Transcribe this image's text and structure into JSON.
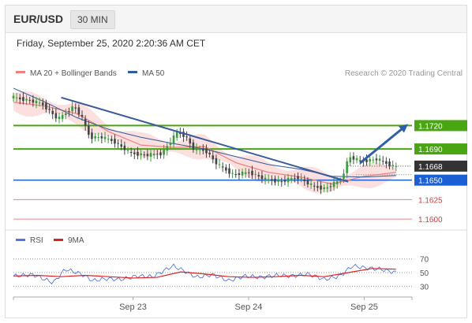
{
  "header": {
    "pair": "EUR/USD",
    "timeframe": "30 MIN"
  },
  "datetime": "Friday, September 25, 2020 2:20:36 AM CET",
  "colors": {
    "ma20": "#f08080",
    "band_fill": "#fbd5d5",
    "ma50": "#2e5a9e",
    "support_line": "#1a5fd6",
    "resistance_line": "#4aa512",
    "minor_line": "#f08080",
    "price_box": "#333333",
    "candle_up": "#3d9b3d",
    "candle_down": "#444444",
    "rsi": "#5577dd",
    "rsi_ma": "#dd2222"
  },
  "chart_data": [
    {
      "type": "candlestick",
      "title": "",
      "legend": [
        {
          "label": "MA 20 + Bollinger Bands",
          "color": "#f08080"
        },
        {
          "label": "MA 50",
          "color": "#2e5a9e"
        }
      ],
      "legend_placement": "top-left",
      "credit": "Research © 2020 Trading Central",
      "x_ticks": [
        "Sep 23",
        "Sep 24",
        "Sep 25"
      ],
      "y_range": [
        1.159,
        1.1775
      ],
      "levels": [
        {
          "value": 1.172,
          "label": "1.1720",
          "kind": "resistance"
        },
        {
          "value": 1.169,
          "label": "1.1690",
          "kind": "resistance"
        },
        {
          "value": 1.1668,
          "label": "1.1668",
          "kind": "current"
        },
        {
          "value": 1.165,
          "label": "1.1650",
          "kind": "support"
        },
        {
          "value": 1.1625,
          "label": "1.1625",
          "kind": "minor"
        },
        {
          "value": 1.16,
          "label": "1.1600",
          "kind": "minor"
        }
      ],
      "trendline": {
        "from": [
          0.12,
          1.1756
        ],
        "to": [
          0.84,
          1.1648
        ]
      },
      "forecast_arrow": {
        "from": [
          0.87,
          1.1672
        ],
        "to": [
          0.99,
          1.1722
        ]
      },
      "series": [
        {
          "name": "Price",
          "x": [
            0,
            0.04,
            0.08,
            0.12,
            0.16,
            0.18,
            0.2,
            0.23,
            0.26,
            0.3,
            0.34,
            0.38,
            0.42,
            0.44,
            0.46,
            0.49,
            0.52,
            0.56,
            0.6,
            0.64,
            0.68,
            0.72,
            0.76,
            0.79,
            0.81,
            0.83,
            0.85,
            0.88,
            0.92,
            0.96
          ],
          "y": [
            1.1757,
            1.1753,
            1.1748,
            1.1728,
            1.1745,
            1.173,
            1.1705,
            1.1705,
            1.17,
            1.1685,
            1.1682,
            1.1684,
            1.1712,
            1.1706,
            1.169,
            1.1688,
            1.167,
            1.1657,
            1.166,
            1.1651,
            1.1648,
            1.1654,
            1.1642,
            1.1639,
            1.1645,
            1.165,
            1.168,
            1.1674,
            1.1677,
            1.1668
          ]
        },
        {
          "name": "MA 20",
          "x": [
            0,
            0.08,
            0.16,
            0.24,
            0.32,
            0.4,
            0.48,
            0.56,
            0.64,
            0.72,
            0.8,
            0.88,
            0.96
          ],
          "y": [
            1.175,
            1.1745,
            1.1735,
            1.1712,
            1.1695,
            1.1692,
            1.1693,
            1.1672,
            1.166,
            1.1654,
            1.1645,
            1.1655,
            1.166
          ]
        },
        {
          "name": "MA 50",
          "x": [
            0,
            0.08,
            0.16,
            0.24,
            0.32,
            0.4,
            0.48,
            0.56,
            0.64,
            0.72,
            0.8,
            0.88,
            0.96
          ],
          "y": [
            1.1768,
            1.175,
            1.173,
            1.1715,
            1.1705,
            1.1697,
            1.169,
            1.168,
            1.167,
            1.1664,
            1.1655,
            1.1654,
            1.1656
          ]
        }
      ]
    },
    {
      "type": "line",
      "title": "",
      "legend": [
        {
          "label": "RSI",
          "color": "#5577dd"
        },
        {
          "label": "9MA",
          "color": "#dd2222"
        }
      ],
      "y_ticks": [
        70,
        50,
        30
      ],
      "y_range": [
        20,
        80
      ],
      "series": [
        {
          "name": "RSI",
          "x": [
            0,
            0.05,
            0.1,
            0.13,
            0.17,
            0.2,
            0.23,
            0.27,
            0.31,
            0.35,
            0.4,
            0.43,
            0.46,
            0.5,
            0.54,
            0.58,
            0.62,
            0.66,
            0.7,
            0.74,
            0.78,
            0.82,
            0.85,
            0.88,
            0.92,
            0.96
          ],
          "y": [
            45,
            47,
            35,
            55,
            48,
            38,
            41,
            40,
            45,
            44,
            60,
            52,
            43,
            47,
            38,
            45,
            43,
            46,
            45,
            48,
            40,
            45,
            60,
            57,
            55,
            50
          ]
        },
        {
          "name": "9MA",
          "x": [
            0,
            0.06,
            0.12,
            0.18,
            0.24,
            0.3,
            0.36,
            0.42,
            0.48,
            0.54,
            0.6,
            0.66,
            0.72,
            0.78,
            0.84,
            0.9,
            0.96
          ],
          "y": [
            45,
            46,
            44,
            46,
            44,
            42,
            43,
            51,
            48,
            44,
            43,
            44,
            46,
            44,
            50,
            56,
            55
          ]
        }
      ]
    }
  ]
}
